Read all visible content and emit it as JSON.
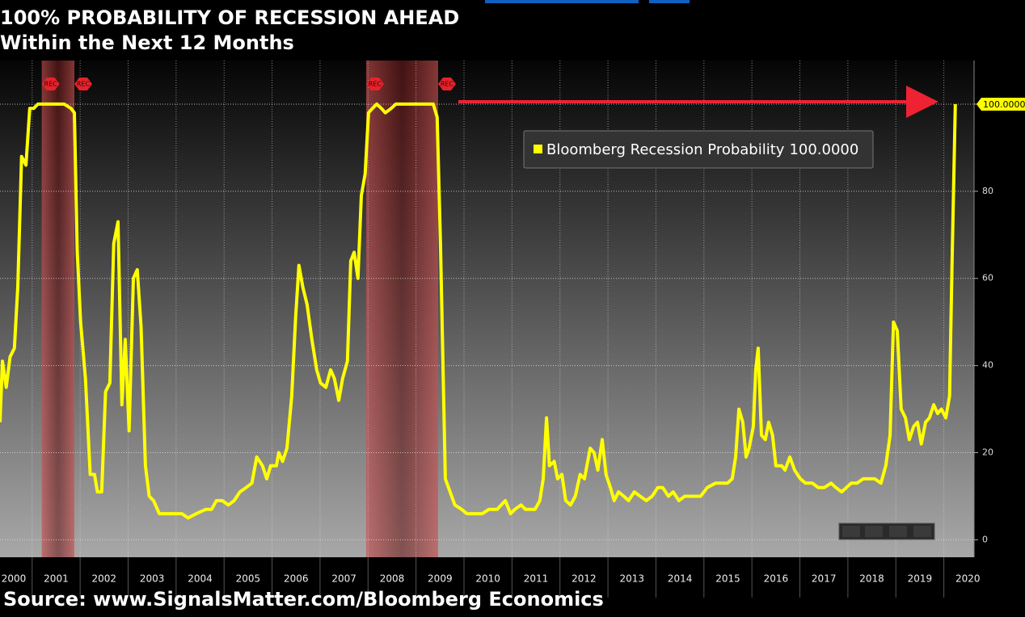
{
  "chart_data": {
    "type": "line",
    "title": "100% PROBABILITY OF RECESSION AHEAD",
    "subtitle": "Within the Next 12 Months",
    "source": "Source: www.SignalsMatter.com/Bloomberg Economics",
    "xlim": [
      2000.33,
      2020.63
    ],
    "xticks": [
      2000,
      2001,
      2002,
      2003,
      2004,
      2005,
      2006,
      2007,
      2008,
      2009,
      2010,
      2011,
      2012,
      2013,
      2014,
      2015,
      2016,
      2017,
      2018,
      2019,
      2020
    ],
    "ylim": [
      -4,
      110
    ],
    "yticks": [
      0,
      20,
      40,
      60,
      80,
      100
    ],
    "grid": true,
    "recession_label": "REC",
    "recessions": [
      {
        "start": 2001.2,
        "end": 2001.88
      },
      {
        "start": 2007.96,
        "end": 2009.46
      }
    ],
    "x": [
      2000.33,
      2000.38,
      2000.46,
      2000.54,
      2000.63,
      2000.7,
      2000.78,
      2000.87,
      2000.95,
      2001.03,
      2001.12,
      2001.25,
      2001.42,
      2001.59,
      2001.67,
      2001.81,
      2001.88,
      2001.94,
      2002.01,
      2002.11,
      2002.21,
      2002.3,
      2002.36,
      2002.45,
      2002.53,
      2002.62,
      2002.7,
      2002.79,
      2002.87,
      2002.94,
      2003.02,
      2003.11,
      2003.19,
      2003.27,
      2003.36,
      2003.44,
      2003.53,
      2003.65,
      2003.78,
      2003.95,
      2004.12,
      2004.25,
      2004.42,
      2004.62,
      2004.74,
      2004.84,
      2004.96,
      2005.09,
      2005.21,
      2005.33,
      2005.46,
      2005.58,
      2005.68,
      2005.8,
      2005.89,
      2005.97,
      2006.09,
      2006.14,
      2006.22,
      2006.31,
      2006.41,
      2006.49,
      2006.56,
      2006.64,
      2006.73,
      2006.83,
      2006.93,
      2007.01,
      2007.12,
      2007.22,
      2007.3,
      2007.39,
      2007.47,
      2007.57,
      2007.64,
      2007.71,
      2007.79,
      2007.86,
      2007.94,
      2008.01,
      2008.09,
      2008.18,
      2008.28,
      2008.36,
      2008.48,
      2008.58,
      2008.75,
      2009.0,
      2009.26,
      2009.36,
      2009.44,
      2009.51,
      2009.61,
      2009.71,
      2009.81,
      2009.95,
      2010.06,
      2010.27,
      2010.38,
      2010.52,
      2010.69,
      2010.86,
      2010.97,
      2011.06,
      2011.19,
      2011.28,
      2011.38,
      2011.48,
      2011.58,
      2011.65,
      2011.72,
      2011.78,
      2011.88,
      2011.95,
      2012.04,
      2012.12,
      2012.22,
      2012.32,
      2012.42,
      2012.51,
      2012.63,
      2012.71,
      2012.79,
      2012.88,
      2012.96,
      2013.05,
      2013.13,
      2013.22,
      2013.33,
      2013.43,
      2013.55,
      2013.67,
      2013.8,
      2013.92,
      2014.04,
      2014.14,
      2014.26,
      2014.36,
      2014.48,
      2014.6,
      2014.73,
      2014.93,
      2015.07,
      2015.24,
      2015.37,
      2015.49,
      2015.59,
      2015.66,
      2015.73,
      2015.81,
      2015.88,
      2015.94,
      2016.03,
      2016.08,
      2016.13,
      2016.2,
      2016.28,
      2016.35,
      2016.43,
      2016.5,
      2016.62,
      2016.69,
      2016.79,
      2016.89,
      2017.01,
      2017.12,
      2017.26,
      2017.38,
      2017.51,
      2017.65,
      2017.75,
      2017.87,
      2017.97,
      2018.07,
      2018.19,
      2018.32,
      2018.44,
      2018.56,
      2018.69,
      2018.79,
      2018.88,
      2018.95,
      2019.03,
      2019.11,
      2019.2,
      2019.28,
      2019.37,
      2019.45,
      2019.53,
      2019.62,
      2019.7,
      2019.79,
      2019.87,
      2019.95,
      2020.04,
      2020.12,
      2020.17,
      2020.24
    ],
    "series": [
      {
        "name": "Bloomberg Recession Probability",
        "color": "#ffff00",
        "last_value_label": "100.0000",
        "values": [
          27,
          41,
          35,
          42,
          44,
          58,
          88,
          86,
          99,
          99,
          100,
          100,
          100,
          100,
          100,
          99,
          98,
          66,
          50,
          37,
          15,
          15,
          11,
          11,
          34,
          36,
          68,
          73,
          31,
          46,
          25,
          60,
          62,
          49,
          17,
          10,
          9,
          6,
          6,
          6,
          6,
          5,
          6,
          7,
          7,
          9,
          9,
          8,
          9,
          11,
          12,
          13,
          19,
          17,
          14,
          17,
          17,
          20,
          18,
          21,
          33,
          51,
          63,
          58,
          54,
          46,
          39,
          36,
          35,
          39,
          37,
          32,
          37,
          41,
          64,
          66,
          60,
          79,
          84,
          98,
          99,
          100,
          99,
          98,
          99,
          100,
          100,
          100,
          100,
          100,
          97,
          68,
          14,
          11,
          8,
          7,
          6,
          6,
          6,
          7,
          7,
          9,
          6,
          7,
          8,
          7,
          7,
          7,
          9,
          14,
          28,
          17,
          18,
          14,
          15,
          9,
          8,
          10,
          15,
          14,
          21,
          20,
          16,
          23,
          15,
          12,
          9,
          11,
          10,
          9,
          11,
          10,
          9,
          10,
          12,
          12,
          10,
          11,
          9,
          10,
          10,
          10,
          12,
          13,
          13,
          13,
          14,
          19,
          30,
          27,
          19,
          21,
          26,
          39,
          44,
          24,
          23,
          27,
          24,
          17,
          17,
          16,
          19,
          16,
          14,
          13,
          13,
          12,
          12,
          13,
          12,
          11,
          12,
          13,
          13,
          14,
          14,
          14,
          13,
          17,
          24,
          50,
          48,
          30,
          28,
          23,
          26,
          27,
          22,
          27,
          28,
          31,
          29,
          30,
          28,
          33,
          63,
          100
        ]
      }
    ]
  }
}
